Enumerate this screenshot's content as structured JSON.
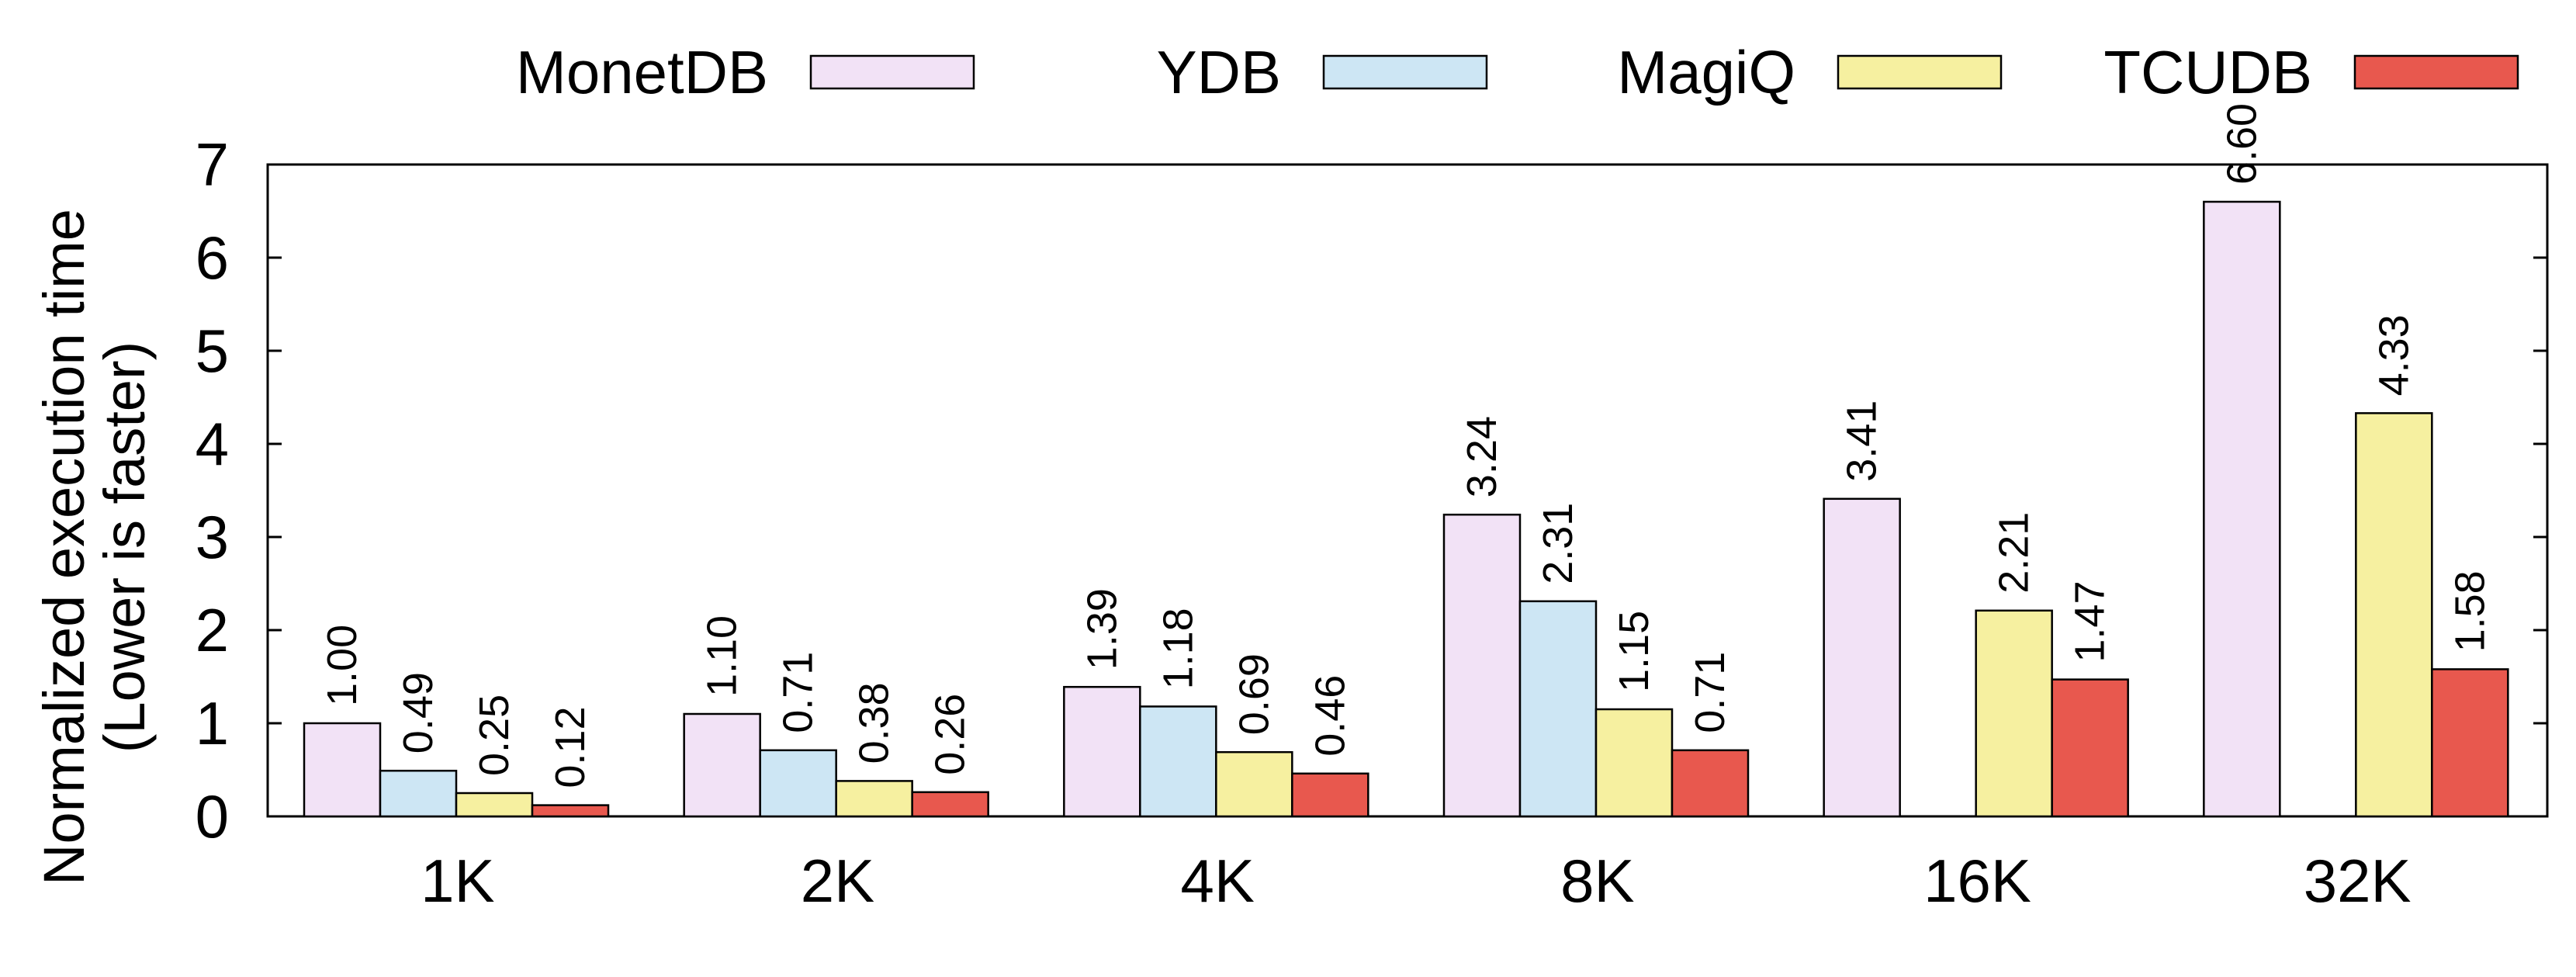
{
  "chart_data": {
    "type": "bar",
    "title": "",
    "categories": [
      "1K",
      "2K",
      "4K",
      "8K",
      "16K",
      "32K"
    ],
    "ylabel_lines": [
      "Normalized execution time",
      "(Lower is faster)"
    ],
    "ylim": [
      0,
      7
    ],
    "yticks": [
      0,
      1,
      2,
      3,
      4,
      5,
      6,
      7
    ],
    "legend_position": "top",
    "grid": false,
    "series": [
      {
        "name": "MonetDB",
        "color": "#f2e2f6",
        "values": [
          1.0,
          1.1,
          1.39,
          3.24,
          3.41,
          6.6
        ],
        "labels": [
          "1.00",
          "1.10",
          "1.39",
          "3.24",
          "3.41",
          "6.60"
        ]
      },
      {
        "name": "YDB",
        "color": "#cde6f4",
        "values": [
          0.49,
          0.71,
          1.18,
          2.31,
          null,
          null
        ],
        "labels": [
          "0.49",
          "0.71",
          "1.18",
          "2.31",
          "",
          ""
        ]
      },
      {
        "name": "MagiQ",
        "color": "#f6f0a0",
        "values": [
          0.25,
          0.38,
          0.69,
          1.15,
          2.21,
          4.33
        ],
        "labels": [
          "0.25",
          "0.38",
          "0.69",
          "1.15",
          "2.21",
          "4.33"
        ]
      },
      {
        "name": "TCUDB",
        "color": "#e8584e",
        "values": [
          0.12,
          0.26,
          0.46,
          0.71,
          1.47,
          1.58
        ],
        "labels": [
          "0.12",
          "0.26",
          "0.46",
          "0.71",
          "1.47",
          "1.58"
        ]
      }
    ]
  }
}
